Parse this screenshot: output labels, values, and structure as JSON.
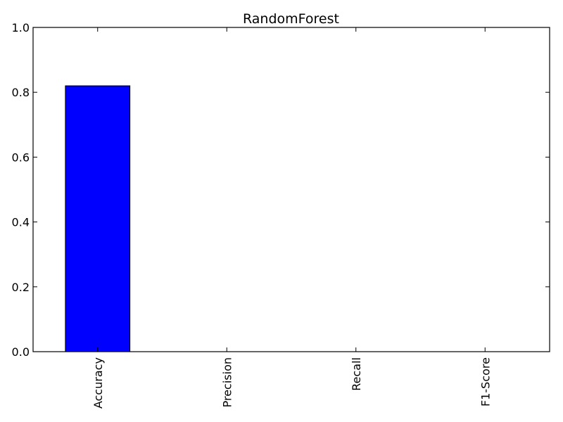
{
  "chart_data": {
    "type": "bar",
    "title": "RandomForest",
    "xlabel": "",
    "ylabel": "",
    "categories": [
      "Accuracy",
      "Precision",
      "Recall",
      "F1-Score"
    ],
    "values": [
      0.82,
      0.0,
      0.0,
      0.0
    ],
    "ylim": [
      0,
      1.0
    ],
    "yticks": [
      "0.0",
      "0.2",
      "0.4",
      "0.6",
      "0.8",
      "1.0"
    ],
    "grid": false,
    "legend": "none",
    "bar_color": "#0000ff",
    "edge_color": "#000000"
  }
}
